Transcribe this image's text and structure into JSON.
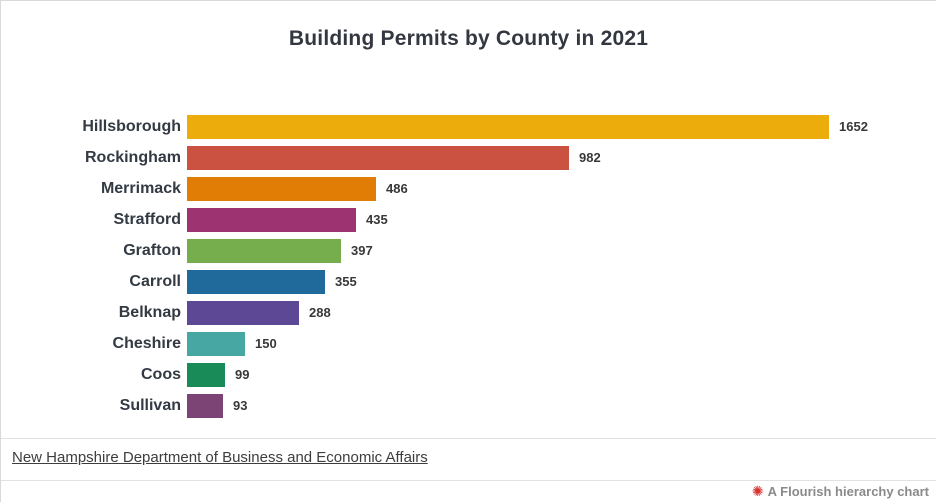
{
  "title": "Building Permits by County in 2021",
  "chart_data": {
    "type": "bar",
    "orientation": "horizontal",
    "title": "Building Permits by County in 2021",
    "xlabel": "",
    "ylabel": "",
    "xlim": [
      0,
      1652
    ],
    "grid": false,
    "legend": false,
    "categories": [
      "Hillsborough",
      "Rockingham",
      "Merrimack",
      "Strafford",
      "Grafton",
      "Carroll",
      "Belknap",
      "Cheshire",
      "Coos",
      "Sullivan"
    ],
    "values": [
      1652,
      982,
      486,
      435,
      397,
      355,
      288,
      150,
      99,
      93
    ],
    "colors": [
      "#ECAD0C",
      "#CB5240",
      "#E17D05",
      "#9E3371",
      "#76AE4D",
      "#1F6A9B",
      "#5C4894",
      "#47A8A3",
      "#198B58",
      "#7B4475"
    ],
    "value_labels_shown": true
  },
  "source": {
    "label": "New Hampshire Department of Business and Economic Affairs"
  },
  "footer": {
    "credit": "A Flourish hierarchy chart",
    "icon": "flourish-starburst-icon",
    "icon_glyph": "✺",
    "icon_color": "#D6332E",
    "text_color": "#8a8a8a"
  }
}
